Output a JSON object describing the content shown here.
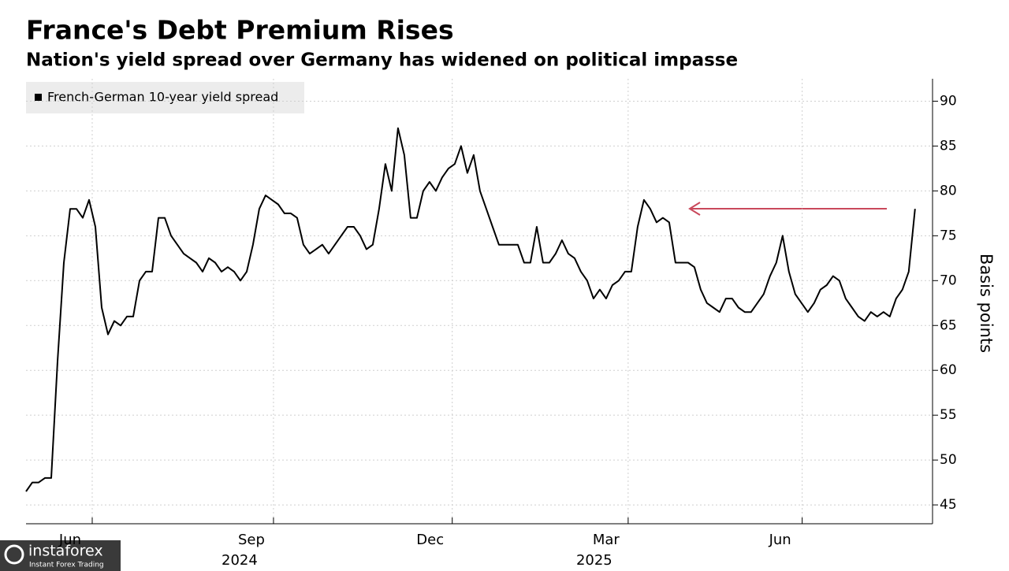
{
  "chart_data": {
    "type": "line",
    "title": "France's Debt Premium Rises",
    "subtitle": "Nation's yield spread over Germany has widened on political impasse",
    "y_axis_label": "Basis points",
    "series": [
      {
        "name": "French-German 10-year yield spread",
        "color": "#000000",
        "values": [
          46.5,
          47.5,
          47.5,
          48,
          48,
          61,
          72,
          78,
          78,
          77,
          79,
          76,
          67,
          64,
          65.5,
          65,
          66,
          66,
          70,
          71,
          71,
          77,
          77,
          75,
          74,
          73,
          72.5,
          72,
          71,
          72.5,
          72,
          71,
          71.5,
          71,
          70,
          71,
          74,
          78,
          79.5,
          79,
          78.5,
          77.5,
          77.5,
          77,
          74,
          73,
          73.5,
          74,
          73,
          74,
          75,
          76,
          76,
          75,
          73.5,
          74,
          78,
          83,
          80,
          87,
          84,
          77,
          77,
          80,
          81,
          80,
          81.5,
          82.5,
          83,
          85,
          82,
          84,
          80,
          78,
          76,
          74,
          74,
          74,
          74,
          72,
          72,
          76,
          72,
          72,
          73,
          74.5,
          73,
          72.5,
          71,
          70,
          68,
          69,
          68,
          69.5,
          70,
          71,
          71,
          76,
          79,
          78,
          76.5,
          77,
          76.5,
          72,
          72,
          72,
          71.5,
          69,
          67.5,
          67,
          66.5,
          68,
          68,
          67,
          66.5,
          66.5,
          67.5,
          68.5,
          70.5,
          72,
          75,
          71,
          68.5,
          67.5,
          66.5,
          67.5,
          69,
          69.5,
          70.5,
          70,
          68,
          67,
          66,
          65.5,
          66.5,
          66,
          66.5,
          66,
          68,
          69,
          71,
          78
        ]
      }
    ],
    "xlim": [
      0,
      143.4
    ],
    "xticks": [
      {
        "value": 10.5,
        "label": "Jun"
      },
      {
        "value": 39.25,
        "label": "Sep"
      },
      {
        "value": 67.6,
        "label": "Dec"
      },
      {
        "value": 95.5,
        "label": "Mar"
      },
      {
        "value": 123.1,
        "label": "Jun"
      }
    ],
    "year_labels": [
      {
        "value": 39.25,
        "label": "2024"
      },
      {
        "value": 95.5,
        "label": "2025"
      }
    ],
    "ylim": [
      42.9,
      92.5
    ],
    "yticks": [
      45,
      50,
      55,
      60,
      65,
      70,
      75,
      80,
      85,
      90
    ],
    "grid": true,
    "legend": "upper left"
  },
  "watermark": {
    "brand": "instaforex",
    "tagline": "Instant Forex Trading"
  }
}
